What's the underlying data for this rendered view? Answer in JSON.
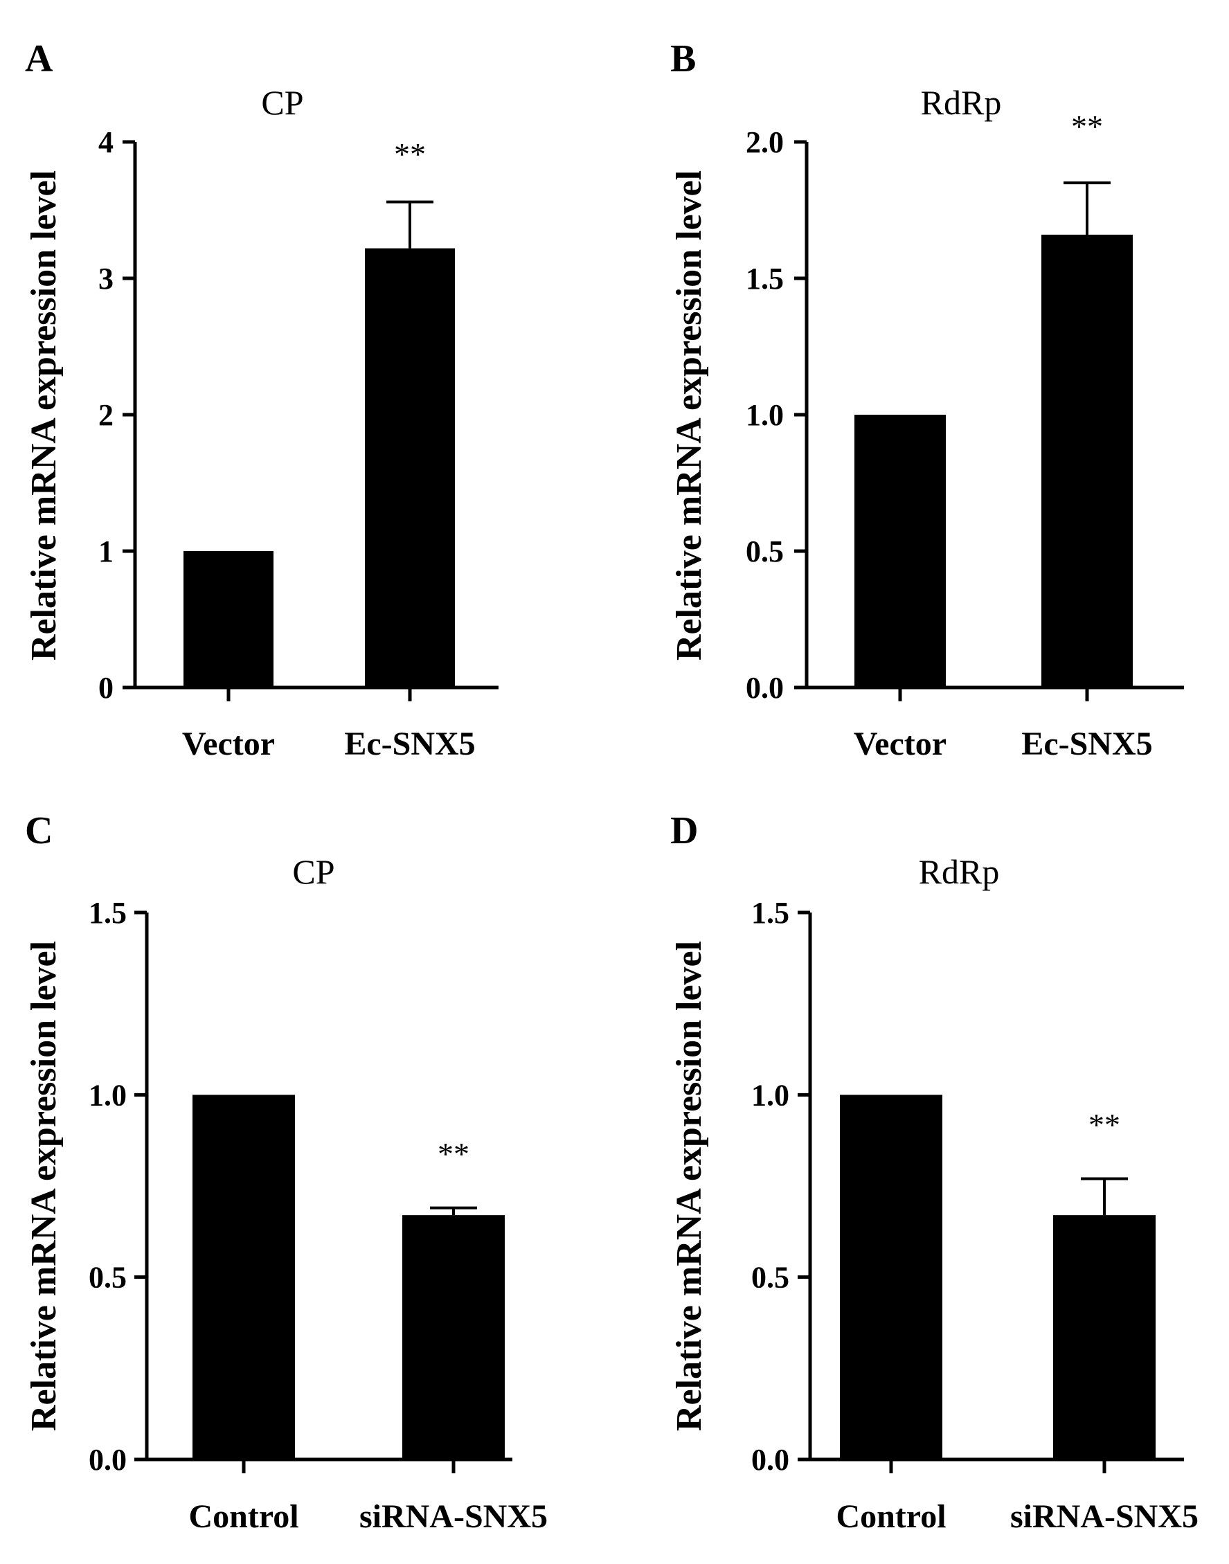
{
  "figure": {
    "panel_labels": [
      "A",
      "B",
      "C",
      "D"
    ],
    "significance_marker": "**"
  },
  "chart_data": [
    {
      "panel": "A",
      "type": "bar",
      "title": "CP",
      "ylabel": "Relative mRNA expression level",
      "xlabel": "",
      "categories": [
        "Vector",
        "Ec-SNX5"
      ],
      "values": [
        1.0,
        3.22
      ],
      "errors": [
        0,
        0.34
      ],
      "significance": [
        "",
        "**"
      ],
      "ylim": [
        0,
        4
      ],
      "yticks": [
        "0",
        "1",
        "2",
        "3",
        "4"
      ],
      "ytick_values": [
        0,
        1,
        2,
        3,
        4
      ],
      "grid": false,
      "bar_color": "#000000"
    },
    {
      "panel": "B",
      "type": "bar",
      "title": "RdRp",
      "ylabel": "Relative mRNA expression level",
      "xlabel": "",
      "categories": [
        "Vector",
        "Ec-SNX5"
      ],
      "values": [
        1.0,
        1.66
      ],
      "errors": [
        0,
        0.19
      ],
      "significance": [
        "",
        "**"
      ],
      "ylim": [
        0,
        2
      ],
      "yticks": [
        "0.0",
        "0.5",
        "1.0",
        "1.5",
        "2.0"
      ],
      "ytick_values": [
        0,
        0.5,
        1.0,
        1.5,
        2.0
      ],
      "grid": false,
      "bar_color": "#000000"
    },
    {
      "panel": "C",
      "type": "bar",
      "title": "CP",
      "ylabel": "Relative mRNA expression level",
      "xlabel": "",
      "categories": [
        "Control",
        "siRNA-SNX5"
      ],
      "values": [
        1.0,
        0.67
      ],
      "errors": [
        0,
        0.02
      ],
      "significance": [
        "",
        "**"
      ],
      "ylim": [
        0,
        1.5
      ],
      "yticks": [
        "0.0",
        "0.5",
        "1.0",
        "1.5"
      ],
      "ytick_values": [
        0,
        0.5,
        1.0,
        1.5
      ],
      "grid": false,
      "bar_color": "#000000"
    },
    {
      "panel": "D",
      "type": "bar",
      "title": "RdRp",
      "ylabel": "Relative mRNA expression level",
      "xlabel": "",
      "categories": [
        "Control",
        "siRNA-SNX5"
      ],
      "values": [
        1.0,
        0.67
      ],
      "errors": [
        0,
        0.1
      ],
      "significance": [
        "",
        "**"
      ],
      "ylim": [
        0,
        1.5
      ],
      "yticks": [
        "0.0",
        "0.5",
        "1.0",
        "1.5"
      ],
      "ytick_values": [
        0,
        0.5,
        1.0,
        1.5
      ],
      "grid": false,
      "bar_color": "#000000"
    }
  ]
}
